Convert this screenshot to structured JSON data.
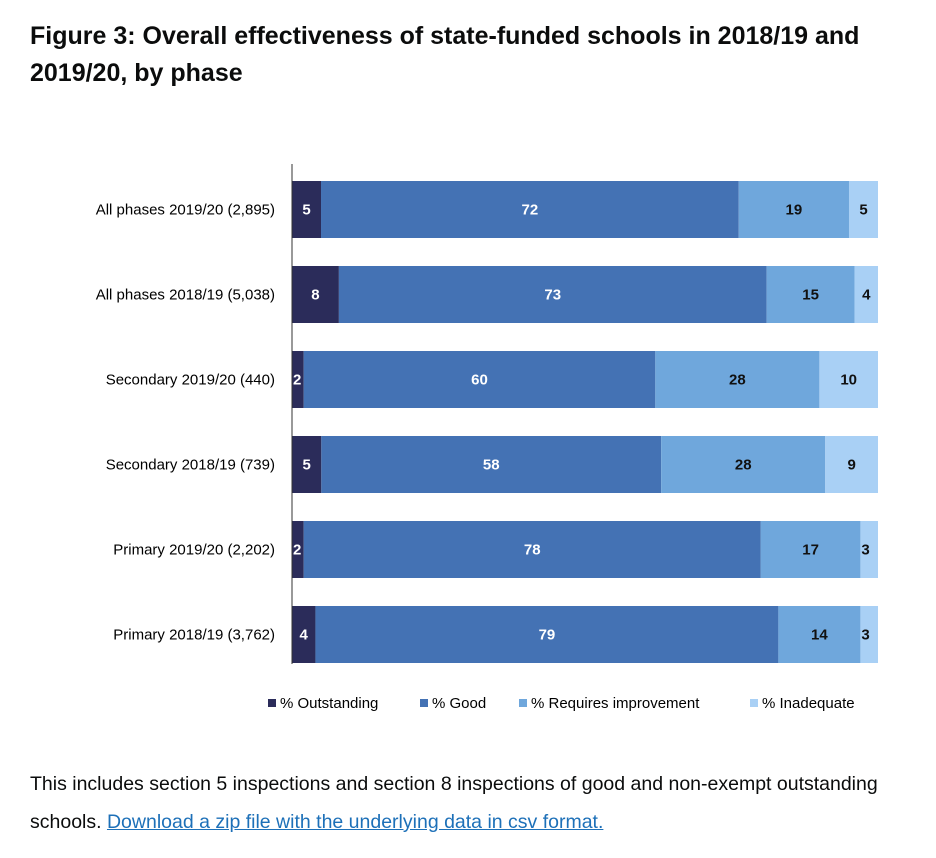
{
  "page": {
    "title": "Figure 3: Overall effectiveness of state-funded schools in 2018/19 and 2019/20, by phase",
    "note_text": "This includes section 5 inspections and section 8 inspections of good and non-exempt outstanding schools.",
    "link_text": "Download a zip file with the underlying data in csv format."
  },
  "chart_data": {
    "type": "bar",
    "orientation": "horizontal",
    "stacked": true,
    "title": "",
    "categories": [
      "All phases 2019/20 (2,895)",
      "All phases 2018/19 (5,038)",
      "Secondary 2019/20 (440)",
      "Secondary 2018/19 (739)",
      "Primary 2019/20 (2,202)",
      "Primary 2018/19 (3,762)"
    ],
    "series": [
      {
        "name": "% Outstanding",
        "color": "#2b2c5a",
        "values": [
          5,
          8,
          2,
          5,
          2,
          4
        ]
      },
      {
        "name": "% Good",
        "color": "#4472b4",
        "values": [
          72,
          73,
          60,
          58,
          78,
          79
        ]
      },
      {
        "name": "% Requires improvement",
        "color": "#6fa7dc",
        "values": [
          19,
          15,
          28,
          28,
          17,
          14
        ]
      },
      {
        "name": "% Inadequate",
        "color": "#a9d0f5",
        "values": [
          5,
          4,
          10,
          9,
          3,
          3
        ]
      }
    ],
    "xlim": [
      0,
      100
    ],
    "legend_position": "bottom",
    "grid": false,
    "data_labels": true
  }
}
